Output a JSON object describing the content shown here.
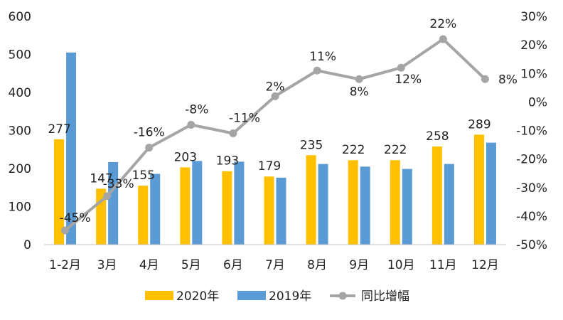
{
  "chart_data": {
    "type": "bar",
    "categories": [
      "1-2月",
      "3月",
      "4月",
      "5月",
      "6月",
      "7月",
      "8月",
      "9月",
      "10月",
      "11月",
      "12月"
    ],
    "series": [
      {
        "name": "2020年",
        "kind": "bar",
        "axis": "left",
        "color": "#FFC000",
        "values": [
          277,
          147,
          155,
          203,
          193,
          179,
          235,
          222,
          222,
          258,
          289
        ]
      },
      {
        "name": "2019年",
        "kind": "bar",
        "axis": "left",
        "color": "#5B9BD5",
        "values": [
          505,
          217,
          186,
          220,
          218,
          176,
          212,
          205,
          199,
          212,
          268
        ]
      },
      {
        "name": "同比增幅",
        "kind": "line",
        "axis": "right",
        "color": "#A5A5A5",
        "values": [
          -45,
          -33,
          -16,
          -8,
          -11,
          2,
          11,
          8,
          12,
          22,
          8
        ]
      }
    ],
    "data_labels": {
      "2020年": [
        "277",
        "147",
        "155",
        "203",
        "193",
        "179",
        "235",
        "222",
        "222",
        "258",
        "289"
      ],
      "同比增幅": [
        "-45%",
        "-33%",
        "-16%",
        "-8%",
        "-11%",
        "2%",
        "11%",
        "8%",
        "12%",
        "22%",
        "8%"
      ]
    },
    "y_left": {
      "ylim": [
        0,
        600
      ],
      "ticks": [
        "0",
        "100",
        "200",
        "300",
        "400",
        "500",
        "600"
      ]
    },
    "y_right": {
      "ylim": [
        -50,
        30
      ],
      "ticks": [
        "-50%",
        "-40%",
        "-30%",
        "-20%",
        "-10%",
        "0%",
        "10%",
        "20%",
        "30%"
      ]
    },
    "legend_position": "bottom",
    "grid": false
  }
}
